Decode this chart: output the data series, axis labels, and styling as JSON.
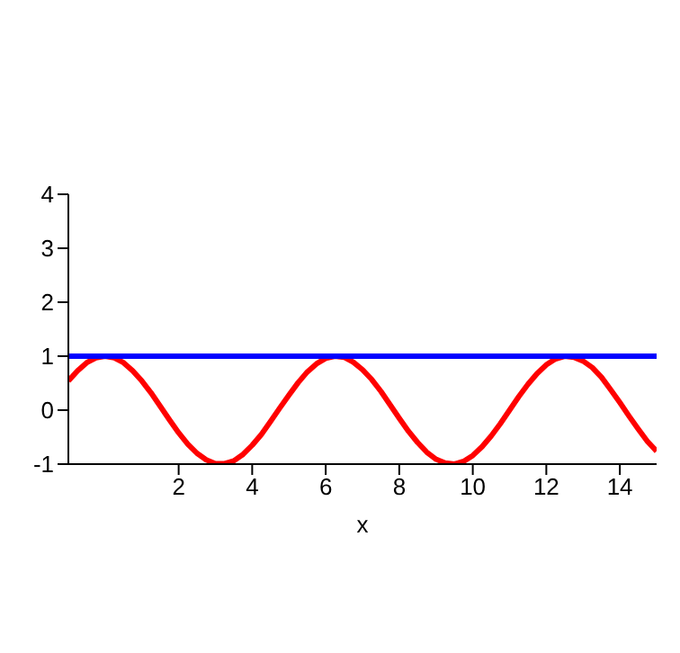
{
  "chart_data": {
    "type": "line",
    "xlabel": "x",
    "x": [
      -1,
      -0.75,
      -0.5,
      -0.25,
      0,
      0.25,
      0.5,
      0.75,
      1,
      1.25,
      1.5,
      1.75,
      2,
      2.25,
      2.5,
      2.75,
      3,
      3.25,
      3.5,
      3.75,
      4,
      4.25,
      4.5,
      4.75,
      5,
      5.25,
      5.5,
      5.75,
      6,
      6.25,
      6.5,
      6.75,
      7,
      7.25,
      7.5,
      7.75,
      8,
      8.25,
      8.5,
      8.75,
      9,
      9.25,
      9.5,
      9.75,
      10,
      10.25,
      10.5,
      10.75,
      11,
      11.25,
      11.5,
      11.75,
      12,
      12.25,
      12.5,
      12.75,
      13,
      13.25,
      13.5,
      13.75,
      14,
      14.25,
      14.5,
      14.75,
      15
    ],
    "series": [
      {
        "color": "#ff0000",
        "values": [
          0.54,
          0.73,
          0.88,
          0.97,
          1,
          0.97,
          0.88,
          0.73,
          0.54,
          0.32,
          0.07,
          -0.18,
          -0.42,
          -0.63,
          -0.8,
          -0.92,
          -0.99,
          -0.99,
          -0.94,
          -0.82,
          -0.65,
          -0.45,
          -0.21,
          0.04,
          0.28,
          0.51,
          0.71,
          0.86,
          0.96,
          1,
          0.98,
          0.89,
          0.75,
          0.57,
          0.35,
          0.1,
          -0.15,
          -0.39,
          -0.6,
          -0.78,
          -0.91,
          -0.98,
          -1,
          -0.95,
          -0.84,
          -0.68,
          -0.48,
          -0.25,
          0,
          0.25,
          0.48,
          0.68,
          0.84,
          0.95,
          1,
          0.98,
          0.91,
          0.79,
          0.61,
          0.38,
          0.14,
          -0.11,
          -0.35,
          -0.58,
          -0.76
        ]
      },
      {
        "color": "#0000ff",
        "x": [
          -1,
          15
        ],
        "values": [
          1,
          1
        ]
      }
    ],
    "xlim": [
      -1,
      15
    ],
    "xticks": [
      2,
      4,
      6,
      8,
      10,
      12,
      14
    ],
    "ylim": [
      -1,
      4
    ],
    "yticks": [
      -1,
      0,
      1,
      2,
      3,
      4
    ],
    "grid": false,
    "legend": false,
    "marker": "none",
    "line_style": "solid"
  }
}
